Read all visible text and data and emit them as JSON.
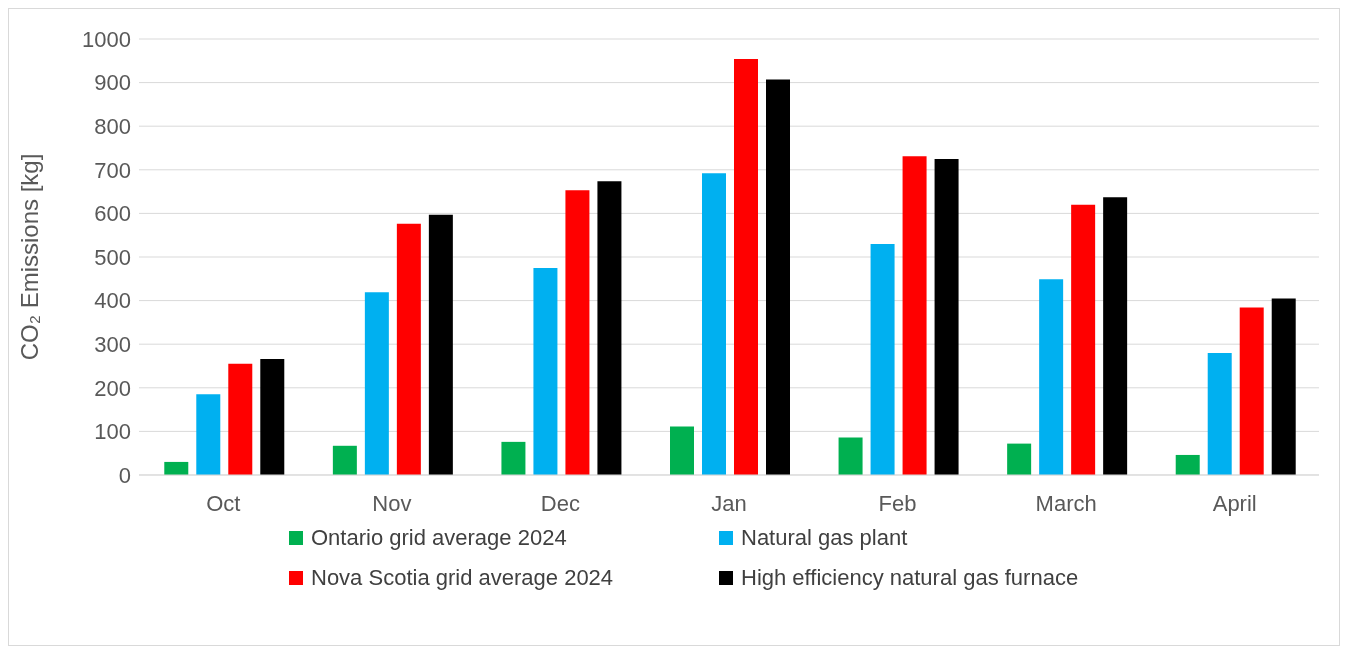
{
  "chart_data": {
    "type": "bar",
    "ylabel": "CO₂ Emissions [kg]",
    "categories": [
      "Oct",
      "Nov",
      "Dec",
      "Jan",
      "Feb",
      "March",
      "April"
    ],
    "series": [
      {
        "name": "Ontario grid average 2024",
        "color": "#00b050",
        "values": [
          30,
          67,
          76,
          111,
          86,
          72,
          46
        ]
      },
      {
        "name": "Natural gas plant",
        "color": "#00b0f0",
        "values": [
          185,
          419,
          475,
          692,
          530,
          449,
          280
        ]
      },
      {
        "name": "Nova Scotia grid average 2024",
        "color": "#ff0000",
        "values": [
          255,
          576,
          653,
          954,
          731,
          620,
          384
        ]
      },
      {
        "name": "High efficiency natural gas furnace",
        "color": "#000000",
        "values": [
          266,
          597,
          674,
          907,
          725,
          637,
          405
        ]
      }
    ],
    "ylim": [
      0,
      1000
    ],
    "yticks": [
      0,
      100,
      200,
      300,
      400,
      500,
      600,
      700,
      800,
      900,
      1000
    ],
    "grid": "y",
    "legend": "bottom"
  }
}
